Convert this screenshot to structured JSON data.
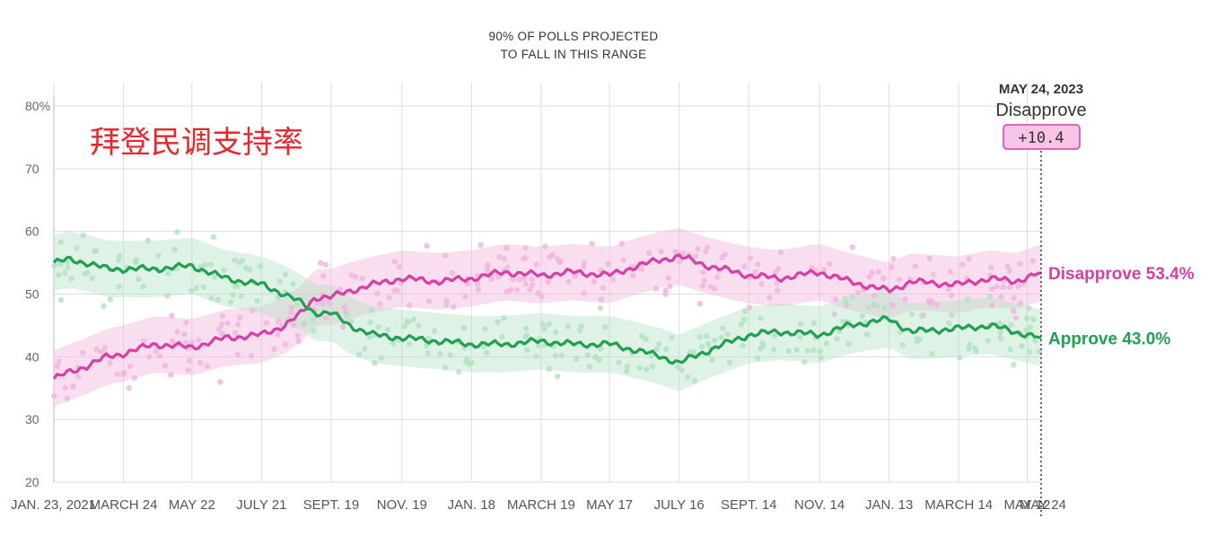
{
  "chart_data": {
    "type": "line",
    "title": "拜登民调支持率",
    "band_note": [
      "90% OF POLLS PROJECTED",
      "TO FALL IN THIS RANGE"
    ],
    "y_axis": {
      "ylim": [
        20,
        80
      ],
      "ticks": [
        20,
        30,
        40,
        50,
        60,
        70,
        80
      ],
      "tick_labels": [
        "20",
        "30",
        "40",
        "50",
        "60",
        "70",
        "80%"
      ]
    },
    "x_axis": {
      "xlim": [
        "2021-01-23",
        "2023-05-24"
      ],
      "ticks": [
        "2021-01-23",
        "2021-03-24",
        "2021-05-22",
        "2021-07-21",
        "2021-09-19",
        "2021-11-19",
        "2022-01-18",
        "2022-03-19",
        "2022-05-17",
        "2022-07-16",
        "2022-09-14",
        "2022-11-14",
        "2023-01-13",
        "2023-03-14",
        "2023-05-12"
      ],
      "tick_labels": [
        "JAN. 23, 2021",
        "MARCH 24",
        "MAY 22",
        "JULY 21",
        "SEPT. 19",
        "NOV. 19",
        "JAN. 18",
        "MARCH 19",
        "MAY 17",
        "JULY 16",
        "SEPT. 14",
        "NOV. 14",
        "JAN. 13",
        "MARCH 14",
        "MAY 12"
      ],
      "end_label": "MAY 24"
    },
    "grid": true,
    "series": [
      {
        "name": "Disapprove",
        "color": "#d63fa5",
        "band_color": "#f2b6de",
        "x": [
          "2021-01-23",
          "2021-02-05",
          "2021-02-20",
          "2021-03-10",
          "2021-03-24",
          "2021-04-20",
          "2021-05-22",
          "2021-06-20",
          "2021-07-21",
          "2021-08-10",
          "2021-08-25",
          "2021-09-05",
          "2021-09-19",
          "2021-10-05",
          "2021-10-25",
          "2021-11-19",
          "2021-12-20",
          "2022-01-18",
          "2022-02-15",
          "2022-03-19",
          "2022-04-15",
          "2022-05-17",
          "2022-06-10",
          "2022-07-01",
          "2022-07-16",
          "2022-08-10",
          "2022-09-14",
          "2022-10-10",
          "2022-11-14",
          "2022-12-10",
          "2023-01-13",
          "2023-02-01",
          "2023-03-14",
          "2023-04-10",
          "2023-05-01",
          "2023-05-24"
        ],
        "values": [
          36.5,
          37.5,
          38.5,
          40.0,
          40.5,
          42.0,
          41.5,
          43.0,
          43.5,
          45.0,
          47.0,
          49.5,
          49.5,
          50.5,
          51.5,
          52.5,
          52.0,
          52.5,
          53.5,
          53.0,
          53.5,
          53.0,
          54.5,
          55.5,
          56.0,
          54.5,
          53.0,
          52.5,
          53.5,
          52.0,
          50.5,
          52.0,
          51.5,
          52.5,
          52.0,
          53.4
        ]
      },
      {
        "name": "Approve",
        "color": "#20a050",
        "band_color": "#b5e3c6",
        "x": [
          "2021-01-23",
          "2021-02-05",
          "2021-02-20",
          "2021-03-10",
          "2021-03-24",
          "2021-04-20",
          "2021-05-22",
          "2021-06-20",
          "2021-07-21",
          "2021-08-10",
          "2021-08-25",
          "2021-09-05",
          "2021-09-19",
          "2021-10-05",
          "2021-10-25",
          "2021-11-19",
          "2021-12-20",
          "2022-01-18",
          "2022-02-15",
          "2022-03-19",
          "2022-04-15",
          "2022-05-17",
          "2022-06-10",
          "2022-07-01",
          "2022-07-16",
          "2022-08-10",
          "2022-09-14",
          "2022-10-10",
          "2022-11-14",
          "2022-12-10",
          "2023-01-13",
          "2023-02-01",
          "2023-03-14",
          "2023-04-10",
          "2023-05-01",
          "2023-05-24"
        ],
        "values": [
          55.0,
          55.5,
          55.0,
          54.0,
          54.0,
          54.0,
          54.5,
          52.5,
          51.5,
          50.0,
          48.5,
          47.0,
          47.0,
          45.0,
          43.5,
          43.0,
          42.5,
          42.0,
          42.0,
          42.5,
          42.0,
          42.0,
          41.0,
          40.0,
          39.0,
          41.0,
          43.5,
          44.0,
          43.5,
          45.0,
          46.0,
          44.0,
          44.5,
          45.0,
          44.0,
          43.0
        ]
      }
    ],
    "end_labels": [
      {
        "text": "Disapprove 53.4%",
        "color": "#d63fa5",
        "value": 53.4
      },
      {
        "text": "Approve 43.0%",
        "color": "#20a050",
        "value": 43.0
      }
    ],
    "tooltip": {
      "date": "MAY 24, 2023",
      "series": "Disapprove",
      "margin": "+10.4",
      "badge_color": "#f7c4e8",
      "badge_border": "#d63fa5"
    }
  }
}
